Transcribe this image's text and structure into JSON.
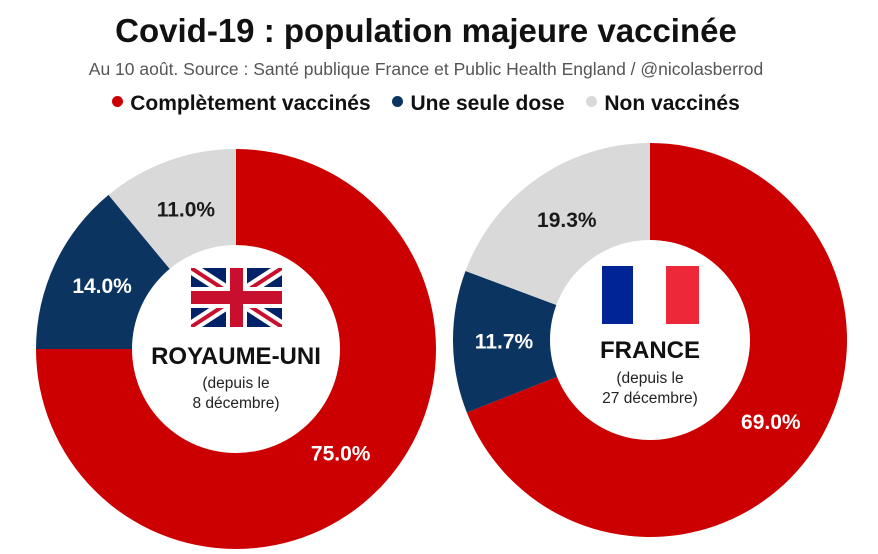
{
  "title": "Covid-19 : population majeure vaccinée",
  "subtitle": "Au 10 août. Source : Santé publique France et Public Health England / @nicolasberrod",
  "chart_data": {
    "type": "pie",
    "variant": "donut",
    "title": "Covid-19 : population majeure vaccinée",
    "legend_position": "top",
    "categories": [
      "Complètement vaccinés",
      "Une seule dose",
      "Non vaccinés"
    ],
    "colors": [
      "#cc0000",
      "#0b3461",
      "#d9d9d9"
    ],
    "label_colors": [
      "#ffffff",
      "#ffffff",
      "#1a1a1a"
    ],
    "series": [
      {
        "name": "ROYAUME-UNI",
        "note_line1": "(depuis le",
        "note_line2": "8 décembre)",
        "flag": "union-jack-flag",
        "values": [
          75.0,
          14.0,
          11.0
        ],
        "labels": [
          "75.0%",
          "14.0%",
          "11.0%"
        ]
      },
      {
        "name": "FRANCE",
        "note_line1": "(depuis le",
        "note_line2": "27 décembre)",
        "flag": "french-flag",
        "values": [
          69.0,
          11.7,
          19.3
        ],
        "labels": [
          "69.0%",
          "11.7%",
          "19.3%"
        ]
      }
    ]
  }
}
